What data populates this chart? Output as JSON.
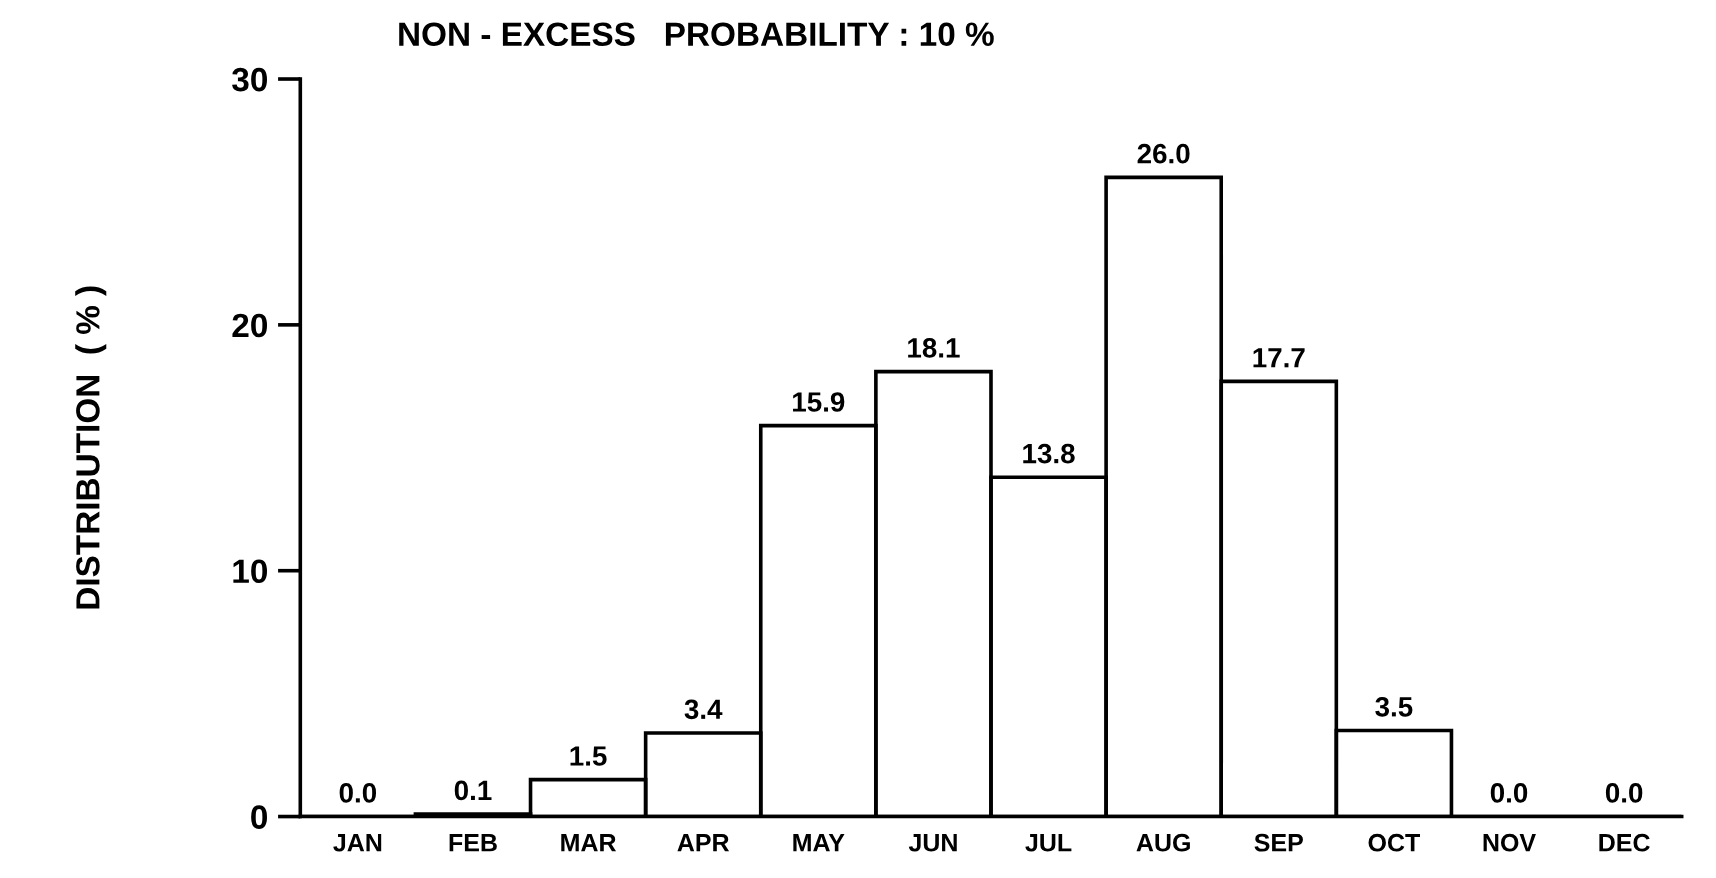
{
  "chart_data": {
    "type": "bar",
    "title": "NON - EXCESS   PROBABILITY : 10 %",
    "ylabel": "DISTRIBUTION  ( % )",
    "categories": [
      "JAN",
      "FEB",
      "MAR",
      "APR",
      "MAY",
      "JUN",
      "JUL",
      "AUG",
      "SEP",
      "OCT",
      "NOV",
      "DEC"
    ],
    "values": [
      0.0,
      0.1,
      1.5,
      3.4,
      15.9,
      18.1,
      13.8,
      26.0,
      17.7,
      3.5,
      0.0,
      0.0
    ],
    "value_labels": [
      "0.0",
      "0.1",
      "1.5",
      "3.4",
      "15.9",
      "18.1",
      "13.8",
      "26.0",
      "17.7",
      "3.5",
      "0.0",
      "0.0"
    ],
    "color": "#000000",
    "ylim": [
      0,
      30
    ],
    "yticks": [
      0,
      10,
      20,
      30
    ],
    "grid": false
  }
}
